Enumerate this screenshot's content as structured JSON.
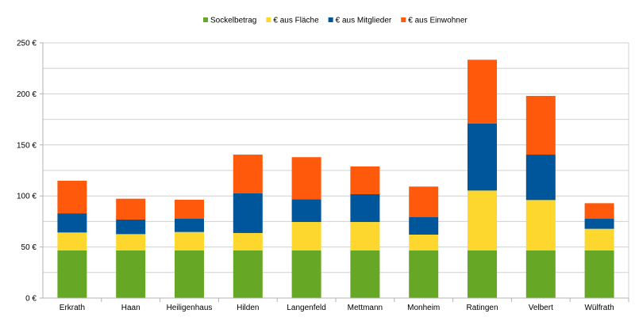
{
  "chart_data": {
    "type": "bar",
    "stacked": true,
    "categories": [
      "Erkrath",
      "Haan",
      "Heiligenhaus",
      "Hilden",
      "Langenfeld",
      "Mettmann",
      "Monheim",
      "Ratingen",
      "Velbert",
      "Wülfrath"
    ],
    "series": [
      {
        "name": "Sockelbetrag",
        "color": "#66a825",
        "values": [
          46.6,
          46.6,
          46.6,
          46.6,
          46.6,
          46.6,
          46.6,
          46.6,
          46.6,
          46.6
        ]
      },
      {
        "name": "€ aus Fläche",
        "color": "#fdd72d",
        "values": [
          17.6,
          16.0,
          18.1,
          17.1,
          27.9,
          27.9,
          15.5,
          58.7,
          49.4,
          21.2
        ]
      },
      {
        "name": "€ aus Mitglieder",
        "color": "#00569a",
        "values": [
          18.8,
          14.3,
          13.2,
          38.8,
          22.3,
          27.2,
          17.1,
          65.5,
          44.5,
          10.1
        ]
      },
      {
        "name": "€ aus Einwohner",
        "color": "#ff5a0c",
        "values": [
          31.9,
          20.4,
          18.4,
          38.0,
          41.2,
          27.2,
          30.0,
          62.6,
          57.5,
          15.0
        ]
      }
    ],
    "ylim": [
      0,
      250
    ],
    "yticks": [
      0,
      50,
      100,
      150,
      200,
      250
    ],
    "ytick_labels": [
      "0 €",
      "50 €",
      "100 €",
      "150 €",
      "200 €",
      "250 €"
    ],
    "grid": true,
    "legend": "top"
  }
}
